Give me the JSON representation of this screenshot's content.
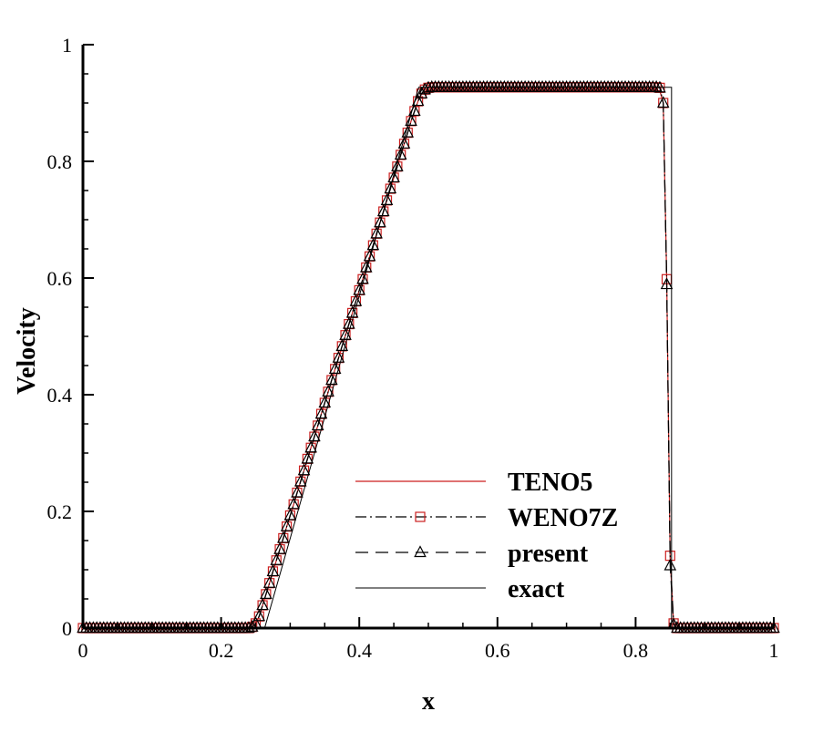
{
  "chart_data": {
    "type": "line",
    "xlabel": "x",
    "ylabel": "Velocity",
    "xlim": [
      0,
      1
    ],
    "ylim": [
      0,
      1
    ],
    "xticks": [
      0,
      0.2,
      0.4,
      0.6,
      0.8,
      1
    ],
    "yticks": [
      0,
      0.2,
      0.4,
      0.6,
      0.8,
      1
    ],
    "minor_divisions": 4,
    "legend": "lower center",
    "x": [
      0,
      0.005,
      0.01,
      0.015,
      0.02,
      0.025,
      0.03,
      0.035,
      0.04,
      0.045,
      0.05,
      0.055,
      0.06,
      0.065,
      0.07,
      0.075,
      0.08,
      0.085,
      0.09,
      0.095,
      0.1,
      0.105,
      0.11,
      0.115,
      0.12,
      0.125,
      0.13,
      0.135,
      0.14,
      0.145,
      0.15,
      0.155,
      0.16,
      0.165,
      0.17,
      0.175,
      0.18,
      0.185,
      0.19,
      0.195,
      0.2,
      0.205,
      0.21,
      0.215,
      0.22,
      0.225,
      0.23,
      0.235,
      0.24,
      0.245,
      0.25,
      0.255,
      0.26,
      0.265,
      0.27,
      0.275,
      0.28,
      0.285,
      0.29,
      0.295,
      0.3,
      0.305,
      0.31,
      0.315,
      0.32,
      0.325,
      0.33,
      0.335,
      0.34,
      0.345,
      0.35,
      0.355,
      0.36,
      0.365,
      0.37,
      0.375,
      0.38,
      0.385,
      0.39,
      0.395,
      0.4,
      0.405,
      0.41,
      0.415,
      0.42,
      0.425,
      0.43,
      0.435,
      0.44,
      0.445,
      0.45,
      0.455,
      0.46,
      0.465,
      0.47,
      0.475,
      0.48,
      0.485,
      0.49,
      0.495,
      0.5,
      0.505,
      0.51,
      0.515,
      0.52,
      0.525,
      0.53,
      0.535,
      0.54,
      0.545,
      0.55,
      0.555,
      0.56,
      0.565,
      0.57,
      0.575,
      0.58,
      0.585,
      0.59,
      0.595,
      0.6,
      0.605,
      0.61,
      0.615,
      0.62,
      0.625,
      0.63,
      0.635,
      0.64,
      0.645,
      0.65,
      0.655,
      0.66,
      0.665,
      0.67,
      0.675,
      0.68,
      0.685,
      0.69,
      0.695,
      0.7,
      0.705,
      0.71,
      0.715,
      0.72,
      0.725,
      0.73,
      0.735,
      0.74,
      0.745,
      0.75,
      0.755,
      0.76,
      0.765,
      0.77,
      0.775,
      0.78,
      0.785,
      0.79,
      0.795,
      0.8,
      0.805,
      0.81,
      0.815,
      0.82,
      0.825,
      0.83,
      0.835,
      0.84,
      0.845,
      0.85,
      0.855,
      0.86,
      0.865,
      0.87,
      0.875,
      0.88,
      0.885,
      0.89,
      0.895,
      0.9,
      0.905,
      0.91,
      0.915,
      0.92,
      0.925,
      0.93,
      0.935,
      0.94,
      0.945,
      0.95,
      0.955,
      0.96,
      0.965,
      0.97,
      0.975,
      0.98,
      0.985,
      0.99,
      0.995,
      1
    ],
    "series": [
      {
        "name": "TENO5",
        "color": "#cc1f1f",
        "line_style": "solid",
        "marker": null,
        "values": [
          0,
          0,
          0,
          0,
          0,
          0,
          0,
          0,
          0,
          0,
          0,
          0,
          0,
          0,
          0,
          0,
          0,
          0,
          0,
          0,
          0,
          0,
          0,
          0,
          0,
          0,
          0,
          0,
          0,
          0,
          0,
          0,
          0,
          0,
          0,
          0,
          0,
          0,
          0,
          0,
          0,
          0,
          0,
          0,
          0,
          0,
          0,
          0,
          0,
          0.002,
          0.008,
          0.02,
          0.039,
          0.058,
          0.077,
          0.097,
          0.116,
          0.135,
          0.154,
          0.174,
          0.193,
          0.212,
          0.232,
          0.251,
          0.27,
          0.29,
          0.309,
          0.328,
          0.347,
          0.367,
          0.386,
          0.405,
          0.425,
          0.444,
          0.463,
          0.483,
          0.502,
          0.521,
          0.54,
          0.56,
          0.579,
          0.598,
          0.618,
          0.637,
          0.656,
          0.676,
          0.695,
          0.714,
          0.733,
          0.753,
          0.772,
          0.791,
          0.811,
          0.83,
          0.849,
          0.869,
          0.886,
          0.903,
          0.916,
          0.92,
          0.921,
          0.922,
          0.922,
          0.922,
          0.922,
          0.922,
          0.922,
          0.922,
          0.922,
          0.922,
          0.922,
          0.922,
          0.922,
          0.922,
          0.922,
          0.922,
          0.922,
          0.922,
          0.922,
          0.922,
          0.922,
          0.922,
          0.922,
          0.922,
          0.922,
          0.922,
          0.922,
          0.922,
          0.922,
          0.922,
          0.922,
          0.922,
          0.922,
          0.922,
          0.922,
          0.922,
          0.922,
          0.922,
          0.922,
          0.922,
          0.922,
          0.922,
          0.922,
          0.922,
          0.922,
          0.922,
          0.922,
          0.922,
          0.922,
          0.922,
          0.922,
          0.922,
          0.922,
          0.922,
          0.922,
          0.922,
          0.922,
          0.922,
          0.922,
          0.922,
          0.922,
          0.922,
          0.922,
          0.922,
          0.922,
          0.922,
          0.922,
          0.921,
          0.9,
          0.6,
          0.12,
          0.008,
          0,
          0,
          0,
          0,
          0,
          0,
          0,
          0,
          0,
          0,
          0,
          0,
          0,
          0,
          0,
          0,
          0,
          0,
          0,
          0,
          0,
          0,
          0,
          0,
          0,
          0,
          0,
          0,
          0
        ]
      },
      {
        "name": "WENO7Z",
        "color": "#000000",
        "line_style": "dashdot",
        "marker": "square",
        "marker_color": "#cc1f1f",
        "values": [
          0,
          0,
          0,
          0,
          0,
          0,
          0,
          0,
          0,
          0,
          0,
          0,
          0,
          0,
          0,
          0,
          0,
          0,
          0,
          0,
          0,
          0,
          0,
          0,
          0,
          0,
          0,
          0,
          0,
          0,
          0,
          0,
          0,
          0,
          0,
          0,
          0,
          0,
          0,
          0,
          0,
          0,
          0,
          0,
          0,
          0,
          0,
          0,
          0,
          0.002,
          0.008,
          0.02,
          0.039,
          0.058,
          0.077,
          0.097,
          0.116,
          0.135,
          0.154,
          0.174,
          0.193,
          0.212,
          0.232,
          0.251,
          0.27,
          0.29,
          0.309,
          0.328,
          0.347,
          0.367,
          0.386,
          0.405,
          0.425,
          0.444,
          0.463,
          0.483,
          0.502,
          0.521,
          0.54,
          0.56,
          0.579,
          0.598,
          0.618,
          0.637,
          0.656,
          0.676,
          0.695,
          0.714,
          0.733,
          0.753,
          0.772,
          0.791,
          0.811,
          0.83,
          0.849,
          0.869,
          0.886,
          0.903,
          0.916,
          0.923,
          0.926,
          0.927,
          0.927,
          0.927,
          0.927,
          0.927,
          0.927,
          0.927,
          0.927,
          0.927,
          0.927,
          0.927,
          0.927,
          0.927,
          0.927,
          0.927,
          0.927,
          0.927,
          0.927,
          0.927,
          0.927,
          0.927,
          0.927,
          0.927,
          0.927,
          0.927,
          0.927,
          0.927,
          0.927,
          0.927,
          0.927,
          0.927,
          0.927,
          0.927,
          0.927,
          0.927,
          0.927,
          0.927,
          0.927,
          0.927,
          0.927,
          0.927,
          0.927,
          0.927,
          0.927,
          0.927,
          0.927,
          0.927,
          0.927,
          0.927,
          0.927,
          0.927,
          0.927,
          0.927,
          0.927,
          0.927,
          0.927,
          0.927,
          0.927,
          0.927,
          0.927,
          0.927,
          0.927,
          0.927,
          0.927,
          0.927,
          0.927,
          0.926,
          0.9,
          0.598,
          0.124,
          0.008,
          0,
          0,
          0,
          0,
          0,
          0,
          0,
          0,
          0,
          0,
          0,
          0,
          0,
          0,
          0,
          0,
          0,
          0,
          0,
          0,
          0,
          0,
          0,
          0,
          0,
          0,
          0,
          0,
          0
        ]
      },
      {
        "name": "present",
        "color": "#000000",
        "line_style": "dashed",
        "marker": "triangle",
        "marker_color": "#000000",
        "values": [
          0,
          0,
          0,
          0,
          0,
          0,
          0,
          0,
          0,
          0,
          0,
          0,
          0,
          0,
          0,
          0,
          0,
          0,
          0,
          0,
          0,
          0,
          0,
          0,
          0,
          0,
          0,
          0,
          0,
          0,
          0,
          0,
          0,
          0,
          0,
          0,
          0,
          0,
          0,
          0,
          0,
          0,
          0,
          0,
          0,
          0,
          0,
          0,
          0,
          0.002,
          0.008,
          0.02,
          0.039,
          0.058,
          0.077,
          0.097,
          0.116,
          0.135,
          0.154,
          0.174,
          0.193,
          0.212,
          0.232,
          0.251,
          0.27,
          0.29,
          0.309,
          0.328,
          0.347,
          0.367,
          0.386,
          0.405,
          0.425,
          0.444,
          0.463,
          0.483,
          0.502,
          0.521,
          0.54,
          0.56,
          0.579,
          0.598,
          0.618,
          0.637,
          0.656,
          0.676,
          0.695,
          0.714,
          0.733,
          0.753,
          0.772,
          0.791,
          0.811,
          0.83,
          0.849,
          0.869,
          0.886,
          0.903,
          0.916,
          0.923,
          0.926,
          0.927,
          0.927,
          0.927,
          0.927,
          0.927,
          0.927,
          0.927,
          0.927,
          0.927,
          0.927,
          0.927,
          0.927,
          0.927,
          0.927,
          0.927,
          0.927,
          0.927,
          0.927,
          0.927,
          0.927,
          0.927,
          0.927,
          0.927,
          0.927,
          0.927,
          0.927,
          0.927,
          0.927,
          0.927,
          0.927,
          0.927,
          0.927,
          0.927,
          0.927,
          0.927,
          0.927,
          0.927,
          0.927,
          0.927,
          0.927,
          0.927,
          0.927,
          0.927,
          0.927,
          0.927,
          0.927,
          0.927,
          0.927,
          0.927,
          0.927,
          0.927,
          0.927,
          0.927,
          0.927,
          0.927,
          0.927,
          0.927,
          0.927,
          0.927,
          0.927,
          0.927,
          0.927,
          0.927,
          0.927,
          0.927,
          0.927,
          0.926,
          0.9,
          0.589,
          0.107,
          0.006,
          0,
          0,
          0,
          0,
          0,
          0,
          0,
          0,
          0,
          0,
          0,
          0,
          0,
          0,
          0,
          0,
          0,
          0,
          0,
          0,
          0,
          0,
          0,
          0,
          0,
          0,
          0,
          0,
          0
        ]
      },
      {
        "name": "exact",
        "color": "#000000",
        "line_style": "solid",
        "marker": null,
        "x": [
          0,
          0.263,
          0.486,
          0.852,
          0.852,
          1
        ],
        "values": [
          0,
          0,
          0.927,
          0.927,
          0,
          0
        ]
      }
    ]
  }
}
